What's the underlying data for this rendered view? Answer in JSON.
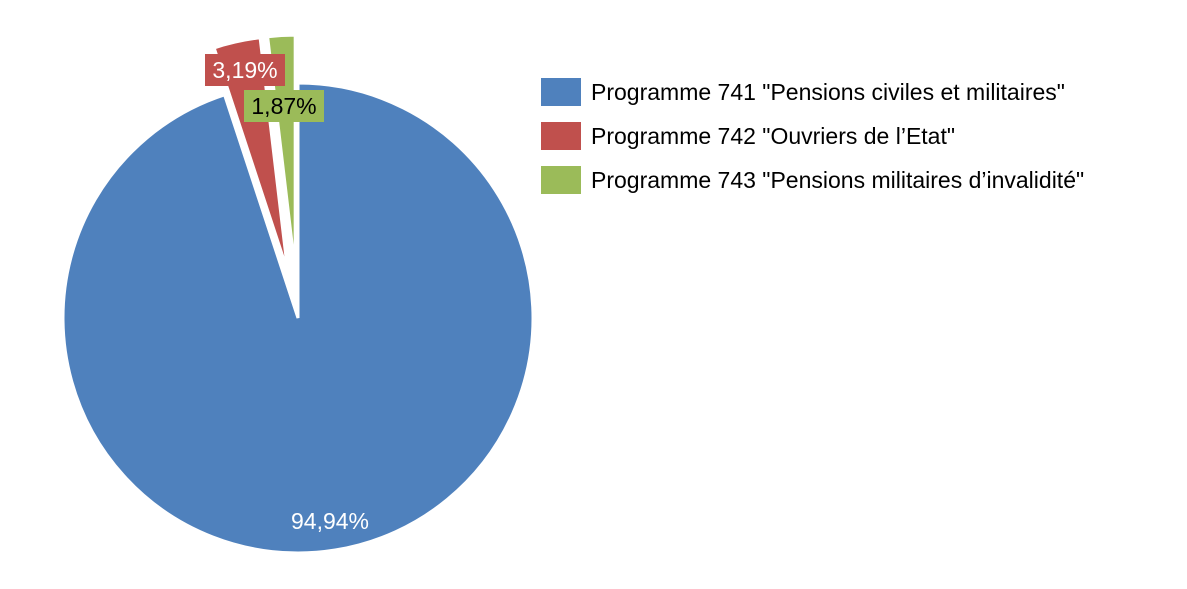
{
  "chart_data": {
    "type": "pie",
    "start_angle": "12 o'clock, clockwise",
    "exploded": [
      "Programme 742 \"Ouvriers de l’Etat\"",
      "Programme 743 \"Pensions militaires d’invalidité\""
    ],
    "legend_position": "right",
    "slices": [
      {
        "name": "Programme 741 \"Pensions civiles et militaires\"",
        "value": 94.94,
        "label": "94,94%",
        "color": "#4F81BD",
        "label_color": "#FFFFFF"
      },
      {
        "name": "Programme 742 \"Ouvriers de l’Etat\"",
        "value": 3.19,
        "label": "3,19%",
        "color": "#C0504D",
        "label_color": "#FFFFFF"
      },
      {
        "name": "Programme 743 \"Pensions militaires d’invalidité\"",
        "value": 1.87,
        "label": "1,87%",
        "color": "#9BBB59",
        "label_color": "#000000"
      }
    ]
  }
}
